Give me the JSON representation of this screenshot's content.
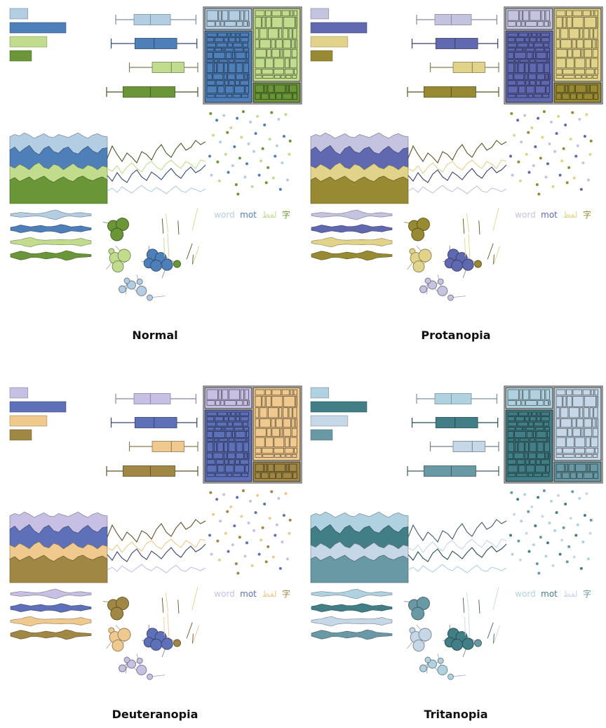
{
  "figure": {
    "legend_words": [
      "word",
      "mot",
      "لفظ",
      "字"
    ],
    "panels": [
      {
        "title": "Normal",
        "colors": [
          "#b3cde3",
          "#4f7fb9",
          "#c2dc8e",
          "#6a9638"
        ]
      },
      {
        "title": "Protanopia",
        "colors": [
          "#c4c3e0",
          "#6068b0",
          "#e2d38a",
          "#978a32"
        ]
      },
      {
        "title": "Deuteranopia",
        "colors": [
          "#c7c0e4",
          "#5d70b8",
          "#efc98e",
          "#a18744"
        ]
      },
      {
        "title": "Tritanopia",
        "colors": [
          "#b0d2e0",
          "#427e86",
          "#c6d7e8",
          "#6a99a6"
        ]
      }
    ]
  },
  "chart_data": {
    "type": "multiples",
    "note_panels": [
      "Normal",
      "Protanopia",
      "Deuteranopia",
      "Tritanopia"
    ],
    "series_count": 4,
    "bars": {
      "type": "bar",
      "orientation": "horizontal",
      "values": [
        2,
        6.2,
        4.1,
        2.4
      ],
      "xlim": [
        0,
        7
      ]
    },
    "boxplots": {
      "type": "box",
      "series": [
        {
          "min": 0.1,
          "q1": 0.3,
          "median": 0.48,
          "q3": 0.7,
          "max": 0.98
        },
        {
          "min": 0.05,
          "q1": 0.31,
          "median": 0.52,
          "q3": 0.77,
          "max": 0.99
        },
        {
          "min": 0.25,
          "q1": 0.5,
          "median": 0.71,
          "q3": 0.85,
          "max": 1.0
        },
        {
          "min": 0.0,
          "q1": 0.18,
          "median": 0.48,
          "q3": 0.75,
          "max": 1.0
        }
      ]
    },
    "treemap": {
      "type": "treemap",
      "groups": [
        {
          "series": 0,
          "weight": 0.12
        },
        {
          "series": 1,
          "weight": 0.46
        },
        {
          "series": 2,
          "weight": 0.3
        },
        {
          "series": 3,
          "weight": 0.12
        }
      ]
    },
    "stacked_area": {
      "type": "area",
      "x": [
        0,
        1,
        2,
        3,
        4,
        5,
        6,
        7,
        8,
        9,
        10,
        11,
        12,
        13,
        14,
        15,
        16,
        17,
        18,
        19,
        20
      ],
      "series": [
        {
          "values": [
            0.85,
            0.88,
            0.86,
            0.9,
            0.87,
            0.83,
            0.86,
            0.89,
            0.85,
            0.84,
            0.88,
            0.86,
            0.84,
            0.87,
            0.9,
            0.86,
            0.83,
            0.87,
            0.89,
            0.86,
            0.85
          ]
        },
        {
          "values": [
            0.68,
            0.72,
            0.65,
            0.7,
            0.74,
            0.66,
            0.62,
            0.7,
            0.73,
            0.66,
            0.64,
            0.7,
            0.72,
            0.65,
            0.63,
            0.69,
            0.73,
            0.67,
            0.64,
            0.7,
            0.71
          ]
        },
        {
          "values": [
            0.48,
            0.45,
            0.5,
            0.47,
            0.43,
            0.49,
            0.52,
            0.46,
            0.44,
            0.5,
            0.48,
            0.43,
            0.47,
            0.51,
            0.46,
            0.44,
            0.49,
            0.47,
            0.43,
            0.48,
            0.46
          ]
        },
        {
          "values": [
            0.3,
            0.33,
            0.28,
            0.31,
            0.34,
            0.29,
            0.32,
            0.35,
            0.3,
            0.27,
            0.31,
            0.34,
            0.3,
            0.28,
            0.33,
            0.35,
            0.31,
            0.29,
            0.32,
            0.34,
            0.3
          ]
        }
      ]
    },
    "lines": {
      "type": "line",
      "x": [
        0,
        1,
        2,
        3,
        4,
        5,
        6,
        7,
        8,
        9,
        10,
        11,
        12,
        13,
        14,
        15,
        16,
        17,
        18,
        19,
        20
      ],
      "series": [
        {
          "values": [
            0.18,
            0.22,
            0.16,
            0.24,
            0.19,
            0.15,
            0.21,
            0.26,
            0.2,
            0.17,
            0.23,
            0.19,
            0.14,
            0.2,
            0.25,
            0.18,
            0.16,
            0.22,
            0.2,
            0.17,
            0.21
          ]
        },
        {
          "values": [
            0.4,
            0.32,
            0.44,
            0.35,
            0.3,
            0.42,
            0.48,
            0.38,
            0.33,
            0.45,
            0.4,
            0.34,
            0.43,
            0.5,
            0.41,
            0.36,
            0.46,
            0.52,
            0.44,
            0.48,
            0.55
          ]
        },
        {
          "values": [
            0.5,
            0.46,
            0.54,
            0.43,
            0.52,
            0.58,
            0.5,
            0.45,
            0.56,
            0.6,
            0.52,
            0.48,
            0.57,
            0.62,
            0.55,
            0.5,
            0.6,
            0.56,
            0.5,
            0.62,
            0.6
          ]
        },
        {
          "values": [
            0.65,
            0.82,
            0.7,
            0.6,
            0.72,
            0.66,
            0.58,
            0.74,
            0.7,
            0.62,
            0.76,
            0.84,
            0.72,
            0.66,
            0.78,
            0.86,
            0.76,
            0.8,
            0.9,
            0.84,
            0.88
          ]
        }
      ]
    },
    "scatter": {
      "type": "scatter",
      "points": [
        [
          0.05,
          0.95,
          3
        ],
        [
          0.12,
          0.88,
          1
        ],
        [
          0.2,
          0.93,
          0
        ],
        [
          0.28,
          0.8,
          2
        ],
        [
          0.35,
          0.9,
          1
        ],
        [
          0.42,
          0.97,
          3
        ],
        [
          0.5,
          0.86,
          0
        ],
        [
          0.58,
          0.92,
          2
        ],
        [
          0.66,
          0.83,
          1
        ],
        [
          0.74,
          0.96,
          3
        ],
        [
          0.82,
          0.89,
          0
        ],
        [
          0.9,
          0.94,
          2
        ],
        [
          0.08,
          0.72,
          2
        ],
        [
          0.16,
          0.65,
          0
        ],
        [
          0.24,
          0.75,
          3
        ],
        [
          0.32,
          0.6,
          1
        ],
        [
          0.4,
          0.7,
          2
        ],
        [
          0.48,
          0.63,
          0
        ],
        [
          0.56,
          0.74,
          1
        ],
        [
          0.64,
          0.58,
          3
        ],
        [
          0.72,
          0.68,
          2
        ],
        [
          0.8,
          0.61,
          0
        ],
        [
          0.88,
          0.71,
          1
        ],
        [
          0.95,
          0.66,
          3
        ],
        [
          0.04,
          0.5,
          1
        ],
        [
          0.13,
          0.44,
          3
        ],
        [
          0.22,
          0.52,
          2
        ],
        [
          0.3,
          0.4,
          0
        ],
        [
          0.38,
          0.48,
          3
        ],
        [
          0.46,
          0.42,
          1
        ],
        [
          0.54,
          0.55,
          0
        ],
        [
          0.62,
          0.45,
          2
        ],
        [
          0.7,
          0.38,
          3
        ],
        [
          0.78,
          0.5,
          1
        ],
        [
          0.86,
          0.43,
          0
        ],
        [
          0.94,
          0.52,
          2
        ],
        [
          0.06,
          0.3,
          0
        ],
        [
          0.15,
          0.24,
          2
        ],
        [
          0.25,
          0.33,
          1
        ],
        [
          0.34,
          0.2,
          3
        ],
        [
          0.44,
          0.28,
          0
        ],
        [
          0.52,
          0.18,
          2
        ],
        [
          0.6,
          0.3,
          1
        ],
        [
          0.68,
          0.22,
          3
        ],
        [
          0.76,
          0.27,
          2
        ],
        [
          0.84,
          0.15,
          1
        ],
        [
          0.92,
          0.25,
          0
        ],
        [
          0.36,
          0.1,
          3
        ]
      ]
    },
    "violins": {
      "type": "violin",
      "series": [
        {
          "profile": [
            0.2,
            0.35,
            0.5,
            0.4,
            0.3,
            0.25,
            0.3,
            0.5,
            0.8,
            1.0,
            0.6,
            0.3,
            0.25,
            0.4,
            0.45,
            0.3,
            0.2
          ]
        },
        {
          "profile": [
            0.3,
            0.5,
            0.8,
            0.6,
            0.4,
            0.55,
            0.7,
            0.5,
            0.45,
            0.6,
            0.9,
            0.7,
            0.4,
            0.5,
            0.6,
            0.35,
            0.2
          ]
        },
        {
          "profile": [
            0.2,
            0.4,
            0.5,
            0.8,
            1.0,
            0.6,
            0.45,
            0.4,
            0.45,
            0.5,
            0.55,
            0.5,
            0.45,
            0.6,
            0.8,
            0.5,
            0.3
          ]
        },
        {
          "profile": [
            0.3,
            0.6,
            0.9,
            0.7,
            0.4,
            0.35,
            0.5,
            0.7,
            0.55,
            0.4,
            0.6,
            1.0,
            0.8,
            0.45,
            0.35,
            0.3,
            0.2
          ]
        }
      ]
    },
    "bubbles": {
      "type": "bubble",
      "points": [
        [
          0.05,
          0.9,
          8,
          3
        ],
        [
          0.15,
          0.92,
          9,
          3
        ],
        [
          0.09,
          0.8,
          9,
          3
        ],
        [
          0.03,
          0.6,
          4,
          2
        ],
        [
          0.07,
          0.52,
          8,
          2
        ],
        [
          0.17,
          0.55,
          9,
          2
        ],
        [
          0.1,
          0.42,
          8,
          2
        ],
        [
          0.48,
          0.56,
          8,
          1
        ],
        [
          0.57,
          0.52,
          8,
          1
        ],
        [
          0.44,
          0.46,
          7,
          1
        ],
        [
          0.52,
          0.43,
          8,
          1
        ],
        [
          0.64,
          0.44,
          8,
          1
        ],
        [
          0.75,
          0.45,
          5,
          3
        ],
        [
          0.15,
          0.15,
          5,
          0
        ],
        [
          0.25,
          0.2,
          6,
          0
        ],
        [
          0.34,
          0.24,
          4,
          0
        ],
        [
          0.36,
          0.13,
          7,
          0
        ],
        [
          0.45,
          0.05,
          4,
          0
        ],
        [
          0.2,
          0.25,
          4,
          0
        ]
      ]
    }
  }
}
